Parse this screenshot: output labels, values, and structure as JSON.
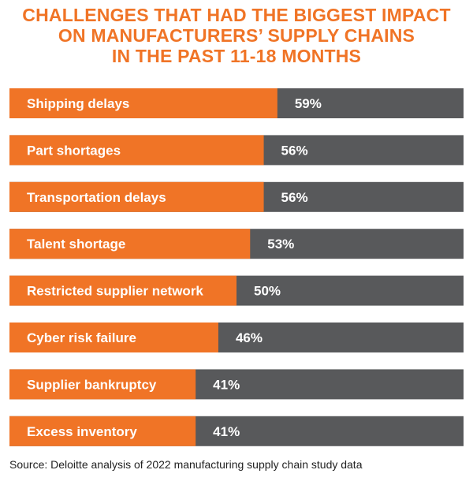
{
  "title_lines": [
    "CHALLENGES THAT HAD THE BIGGEST IMPACT",
    "ON MANUFACTURERS’ SUPPLY CHAINS",
    "IN THE PAST 11-18 MONTHS"
  ],
  "source": "Source: Deloitte analysis of 2022 manufacturing supply chain study data",
  "colors": {
    "accent": "#F07426",
    "track": "#58595B",
    "label": "#ffffff",
    "title": "#F07426"
  },
  "chart_data": {
    "type": "bar",
    "orientation": "horizontal",
    "title": "CHALLENGES THAT HAD THE BIGGEST IMPACT ON MANUFACTURERS’ SUPPLY CHAINS IN THE PAST 11-18 MONTHS",
    "categories": [
      "Shipping delays",
      "Part shortages",
      "Transportation delays",
      "Talent shortage",
      "Restricted supplier network",
      "Cyber risk failure",
      "Supplier bankruptcy",
      "Excess inventory"
    ],
    "values": [
      59,
      56,
      56,
      53,
      50,
      46,
      41,
      41
    ],
    "value_labels": [
      "59%",
      "56%",
      "56%",
      "53%",
      "50%",
      "46%",
      "41%",
      "41%"
    ],
    "unit": "%",
    "xlim": [
      0,
      100
    ],
    "grid": false,
    "legend": "none"
  }
}
